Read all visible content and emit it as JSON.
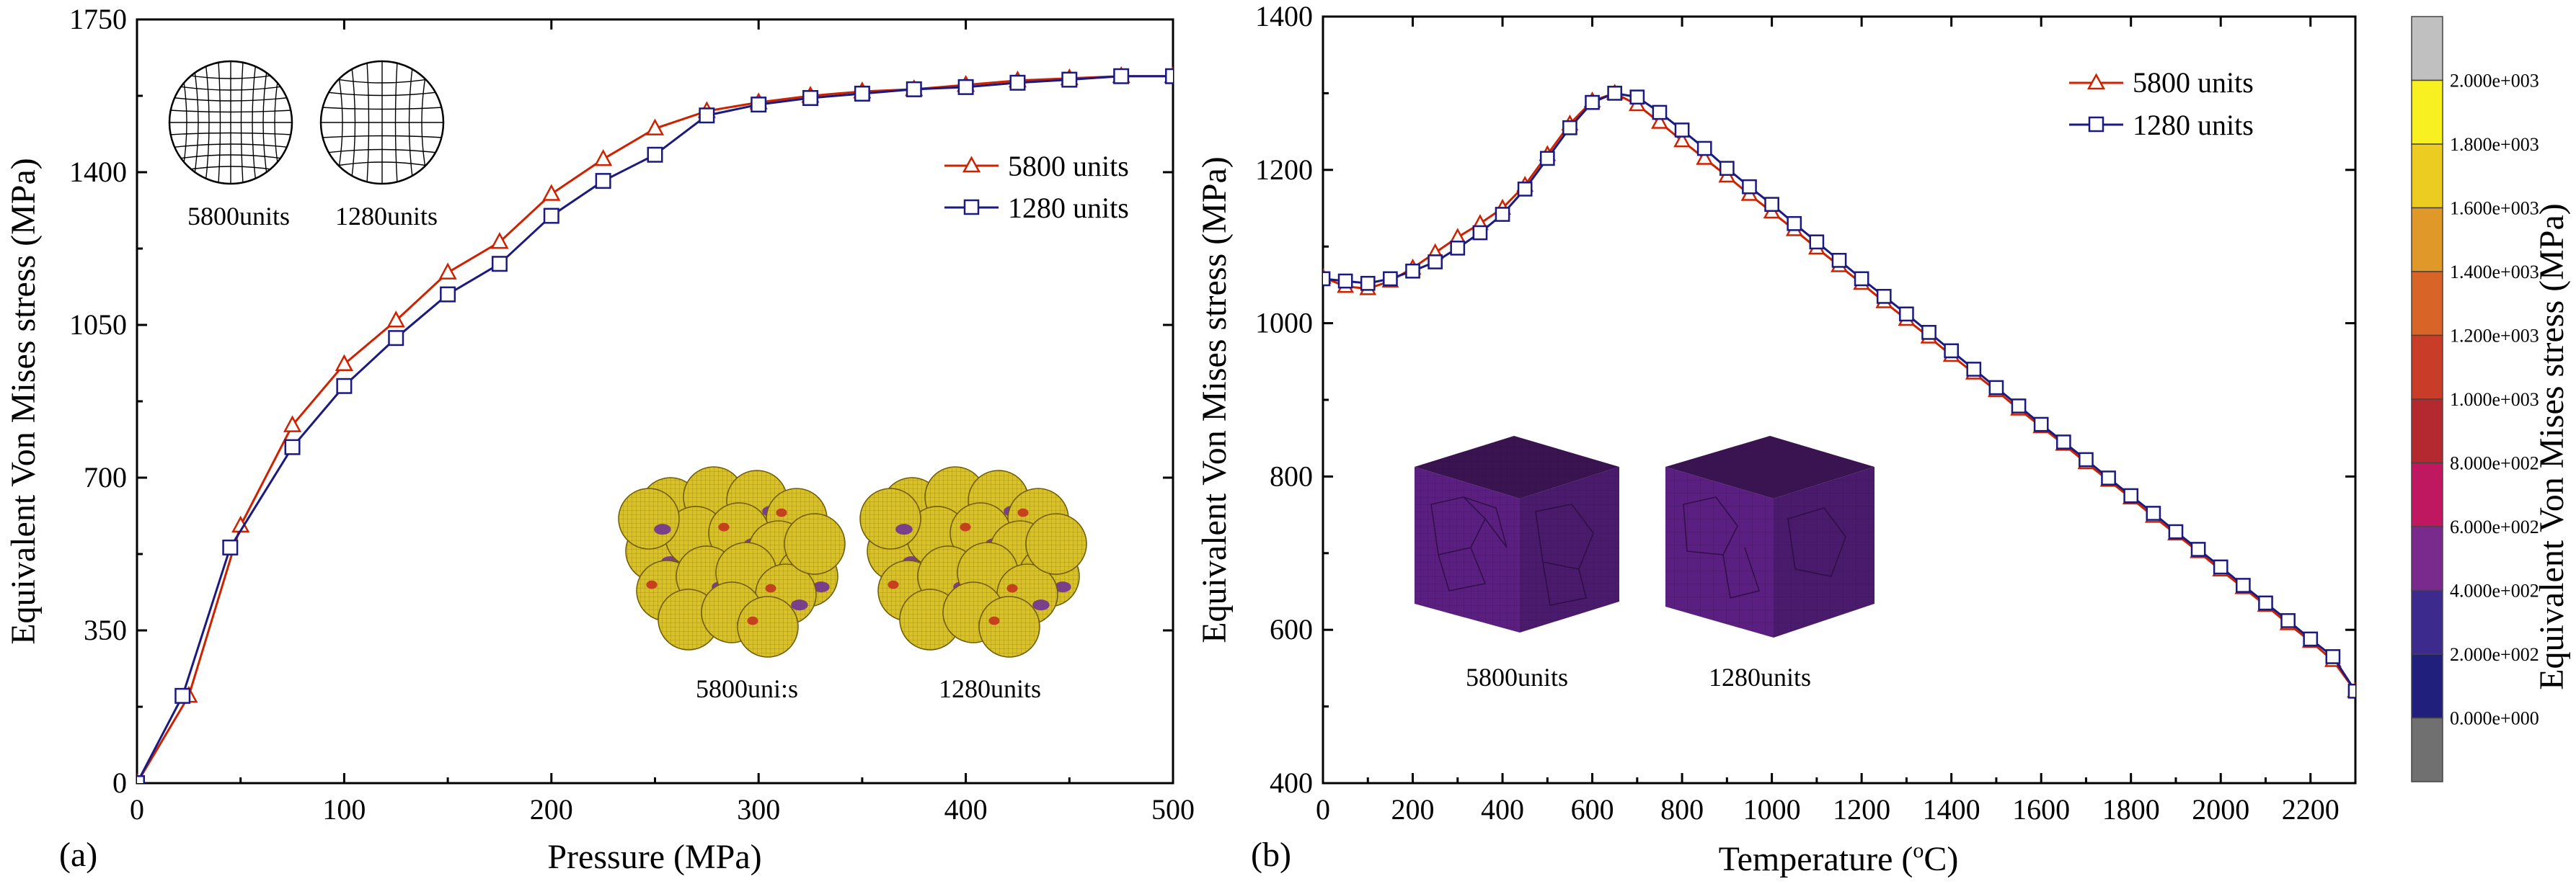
{
  "chart_data": [
    {
      "type": "line",
      "panel_label": "(a)",
      "xlabel": "Pressure (MPa)",
      "ylabel": "Equivalent Von Mises stress (MPa)",
      "xlim": [
        0,
        500
      ],
      "ylim": [
        0,
        1750
      ],
      "xticks": [
        "0",
        "100",
        "200",
        "300",
        "400",
        "500"
      ],
      "yticks": [
        "0",
        "350",
        "700",
        "1050",
        "1400",
        "1750"
      ],
      "legend_position": "upper-right",
      "inset_labels": {
        "mesh_left": "5800units",
        "mesh_right": "1280units",
        "spheres_left": "5800uni:s",
        "spheres_right": "1280units"
      },
      "series": [
        {
          "name": "5800 units",
          "color": "#cc2200",
          "marker": "triangle",
          "x": [
            0,
            25,
            50,
            75,
            100,
            125,
            150,
            175,
            200,
            225,
            250,
            275,
            300,
            325,
            350,
            375,
            400,
            425,
            450,
            475,
            500
          ],
          "y": [
            0,
            200,
            590,
            820,
            960,
            1060,
            1170,
            1240,
            1350,
            1430,
            1500,
            1540,
            1560,
            1575,
            1585,
            1590,
            1600,
            1610,
            1615,
            1620,
            1620
          ]
        },
        {
          "name": "1280 units",
          "color": "#1a1a80",
          "marker": "square",
          "x": [
            0,
            22,
            45,
            75,
            100,
            125,
            150,
            175,
            200,
            225,
            250,
            275,
            300,
            325,
            350,
            375,
            400,
            425,
            450,
            475,
            500
          ],
          "y": [
            0,
            200,
            540,
            770,
            910,
            1020,
            1120,
            1190,
            1300,
            1380,
            1440,
            1530,
            1555,
            1570,
            1580,
            1590,
            1595,
            1605,
            1612,
            1620,
            1620
          ]
        }
      ]
    },
    {
      "type": "line",
      "panel_label": "(b)",
      "xlabel": "Temperature (",
      "xlabel_unit": "o",
      "xlabel_end": "C)",
      "ylabel": "Equivalent Von Mises stress (MPa)",
      "xlim": [
        0,
        2300
      ],
      "ylim": [
        400,
        1400
      ],
      "xticks": [
        "0",
        "200",
        "400",
        "600",
        "800",
        "1000",
        "1200",
        "1400",
        "1600",
        "1800",
        "2000",
        "2200"
      ],
      "yticks": [
        "400",
        "600",
        "800",
        "1000",
        "1200",
        "1400"
      ],
      "legend_position": "upper-right",
      "inset_labels": {
        "cube_left": "5800units",
        "cube_right": "1280units"
      },
      "series": [
        {
          "name": "5800 units",
          "color": "#cc2200",
          "marker": "triangle",
          "x": [
            0,
            50,
            100,
            150,
            200,
            250,
            300,
            350,
            400,
            450,
            500,
            550,
            600,
            650,
            700,
            750,
            800,
            850,
            900,
            950,
            1000,
            1050,
            1100,
            1150,
            1200,
            1250,
            1300,
            1350,
            1400,
            1450,
            1500,
            1550,
            1600,
            1650,
            1700,
            1750,
            1800,
            1850,
            1900,
            1950,
            2000,
            2050,
            2100,
            2150,
            2200,
            2250,
            2300
          ],
          "y": [
            1060,
            1048,
            1045,
            1055,
            1072,
            1092,
            1112,
            1130,
            1150,
            1180,
            1220,
            1260,
            1290,
            1300,
            1285,
            1262,
            1238,
            1215,
            1192,
            1168,
            1145,
            1122,
            1098,
            1075,
            1052,
            1028,
            1005,
            982,
            958,
            935,
            912,
            888,
            865,
            842,
            818,
            795,
            772,
            748,
            725,
            702,
            678,
            655,
            632,
            608,
            585,
            560,
            520
          ]
        },
        {
          "name": "1280 units",
          "color": "#1a1a80",
          "marker": "square",
          "x": [
            0,
            50,
            100,
            150,
            200,
            250,
            300,
            350,
            400,
            450,
            500,
            550,
            600,
            650,
            700,
            750,
            800,
            850,
            900,
            950,
            1000,
            1050,
            1100,
            1150,
            1200,
            1250,
            1300,
            1350,
            1400,
            1450,
            1500,
            1550,
            1600,
            1650,
            1700,
            1750,
            1800,
            1850,
            1900,
            1950,
            2000,
            2050,
            2100,
            2150,
            2200,
            2250,
            2300
          ],
          "y": [
            1058,
            1055,
            1052,
            1058,
            1068,
            1080,
            1098,
            1118,
            1142,
            1175,
            1215,
            1255,
            1288,
            1300,
            1295,
            1275,
            1252,
            1228,
            1202,
            1178,
            1155,
            1130,
            1106,
            1082,
            1058,
            1035,
            1012,
            988,
            964,
            940,
            916,
            892,
            868,
            845,
            822,
            798,
            775,
            752,
            728,
            705,
            682,
            658,
            635,
            612,
            588,
            565,
            520
          ]
        }
      ]
    }
  ],
  "colorbar": {
    "title": "Equivalent Von Mises stress (MPa)",
    "labels": [
      "2.000e+003",
      "1.800e+003",
      "1.600e+003",
      "1.400e+003",
      "1.200e+003",
      "1.000e+003",
      "8.000e+002",
      "6.000e+002",
      "4.000e+002",
      "2.000e+002",
      "0.000e+000"
    ],
    "colors": [
      "#c0c0c0",
      "#f8f020",
      "#eccc20",
      "#e09828",
      "#d86428",
      "#c83c28",
      "#b42830",
      "#c01860",
      "#7a2a8c",
      "#3c2a8c",
      "#20207c",
      "#707070"
    ]
  }
}
